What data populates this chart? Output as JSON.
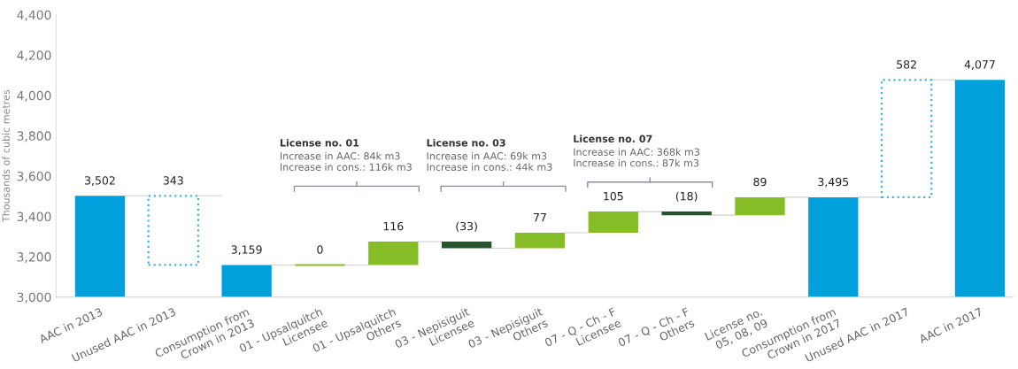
{
  "chart_data": {
    "type": "bar",
    "categories": [
      "AAC in 2013",
      "Unused AAC in 2013",
      "Consumption from\nCrown in 2013",
      "01 - Upsalquitch\nLicensee",
      "01 - Upsalquitch\nOthers",
      "03 - Nepisiguit\nLicensee",
      "03 - Nepisiguit\nOthers",
      "07 - Q - Ch - F\nLicensee",
      "07 - Q - Ch - F\nOthers",
      "License no.\n05, 08, 09",
      "Consumption from\nCrown in 2017",
      "Unused AAC in 2017",
      "AAC in 2017"
    ],
    "series": [
      {
        "values": [
          3502,
          null,
          3159,
          0,
          116,
          -33,
          77,
          105,
          -18,
          89,
          3495,
          null,
          4077
        ],
        "base": [
          0,
          null,
          0,
          3159,
          3159,
          3275,
          3242,
          3319,
          3424,
          3406,
          0,
          null,
          0
        ],
        "colors": [
          "#00a0dc",
          null,
          "#00a0dc",
          "#86bc25",
          "#86bc25",
          "#26542c",
          "#86bc25",
          "#86bc25",
          "#26542c",
          "#86bc25",
          "#00a0dc",
          null,
          "#00a0dc"
        ],
        "value_labels": [
          "3,502",
          null,
          "3,159",
          "0",
          "116",
          "(33)",
          "77",
          "105",
          "(18)",
          "89",
          "3,495",
          null,
          "4,077"
        ]
      },
      {
        "values": [
          null,
          343,
          null,
          null,
          null,
          null,
          null,
          null,
          null,
          null,
          null,
          582,
          null
        ],
        "base": [
          null,
          3159,
          null,
          null,
          null,
          null,
          null,
          null,
          null,
          null,
          null,
          3495,
          null
        ],
        "color": "#3fb4e0",
        "line_style": "dotted",
        "value_labels": [
          null,
          "343",
          null,
          null,
          null,
          null,
          null,
          null,
          null,
          null,
          null,
          "582",
          null
        ]
      }
    ],
    "ylabel": "Thousands of cubic metres",
    "ylim": [
      3000,
      4400
    ],
    "yticks": [
      {
        "value": 3000,
        "label": "3,000"
      },
      {
        "value": 3200,
        "label": "3,200"
      },
      {
        "value": 3400,
        "label": "3,400"
      },
      {
        "value": 3600,
        "label": "3,600"
      },
      {
        "value": 3800,
        "label": "3,800"
      },
      {
        "value": 4000,
        "label": "4,000"
      },
      {
        "value": 4200,
        "label": "4,200"
      },
      {
        "value": 4400,
        "label": "4,400"
      }
    ],
    "grid": false,
    "annotations": [
      "License no. 01\nIncrease in AAC: 84k m3\nIncrease in cons.: 116k m3",
      "License no. 03\nIncrease in AAC: 69k m3\nIncrease in cons.: 44k m3",
      "License no. 07\nIncrease in AAC: 368k m3\nIncrease in cons.: 87k m3"
    ]
  }
}
